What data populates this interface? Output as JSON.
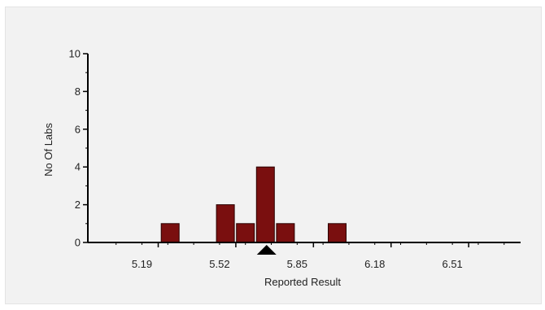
{
  "chart_data": {
    "type": "bar",
    "title": "",
    "xlabel": "Reported Result",
    "ylabel": "No Of Labs",
    "xlim": [
      4.96,
      6.8
    ],
    "ylim": [
      0,
      10
    ],
    "x_ticks": [
      "5.19",
      "5.52",
      "5.85",
      "6.18",
      "6.51"
    ],
    "y_ticks": [
      "0",
      "2",
      "4",
      "6",
      "8",
      "10"
    ],
    "bin_width": 0.083,
    "bars": [
      {
        "x": 5.31,
        "value": 1
      },
      {
        "x": 5.545,
        "value": 2
      },
      {
        "x": 5.63,
        "value": 1
      },
      {
        "x": 5.715,
        "value": 4
      },
      {
        "x": 5.8,
        "value": 1
      },
      {
        "x": 6.02,
        "value": 1
      }
    ],
    "marker_x": 5.72,
    "grid": false,
    "legend": "none",
    "colors": {
      "bar_fill": "#7a0f0f",
      "bar_stroke": "#2a0000",
      "axis": "#000000",
      "marker": "#000000",
      "background": "#f2f2f2"
    }
  }
}
